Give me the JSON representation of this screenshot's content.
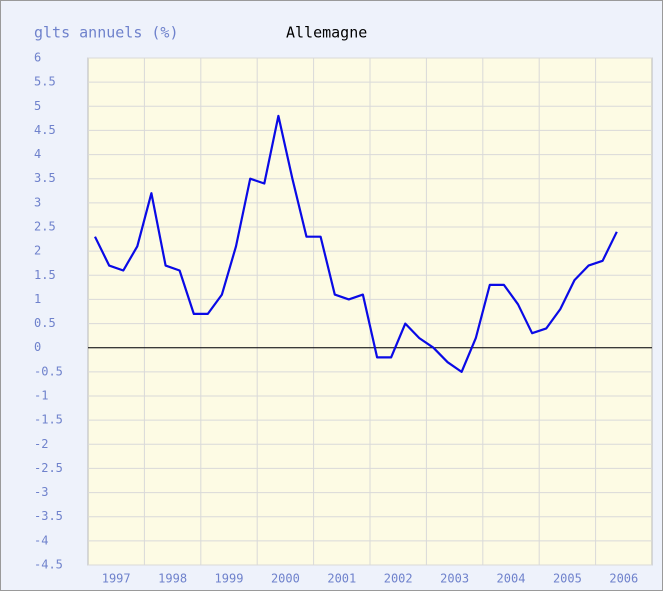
{
  "chart_data": {
    "type": "line",
    "title": "Allemagne",
    "y_label": "glts annuels (%)",
    "categories": [
      "1997",
      null,
      null,
      null,
      "1998",
      null,
      null,
      null,
      "1999",
      null,
      null,
      null,
      "2000",
      null,
      null,
      null,
      "2001",
      null,
      null,
      null,
      "2002",
      null,
      null,
      null,
      "2003",
      null,
      null,
      null,
      "2004",
      null,
      null,
      null,
      "2005",
      null,
      null,
      null,
      "2006",
      null,
      null,
      null
    ],
    "series": [
      {
        "name": "Allemagne",
        "color": "#0a0ae6",
        "values": [
          2.3,
          1.7,
          1.6,
          2.1,
          3.2,
          1.7,
          1.6,
          0.7,
          0.7,
          1.1,
          2.1,
          3.5,
          3.4,
          4.8,
          3.5,
          2.3,
          2.3,
          1.1,
          1.0,
          1.1,
          -0.2,
          -0.2,
          0.5,
          0.2,
          0.0,
          -0.3,
          -0.5,
          0.2,
          1.3,
          1.3,
          0.9,
          0.3,
          0.4,
          0.8,
          1.4,
          1.7,
          1.8,
          2.4,
          null,
          null
        ]
      }
    ],
    "ylim": [
      -4.5,
      6
    ],
    "yticks": [
      -4.5,
      -4,
      -3.5,
      -3,
      -2.5,
      -2,
      -1.5,
      -1,
      -0.5,
      0,
      0.5,
      1,
      1.5,
      2,
      2.5,
      3,
      3.5,
      4,
      4.5,
      5,
      5.5,
      6
    ],
    "grid": true
  }
}
